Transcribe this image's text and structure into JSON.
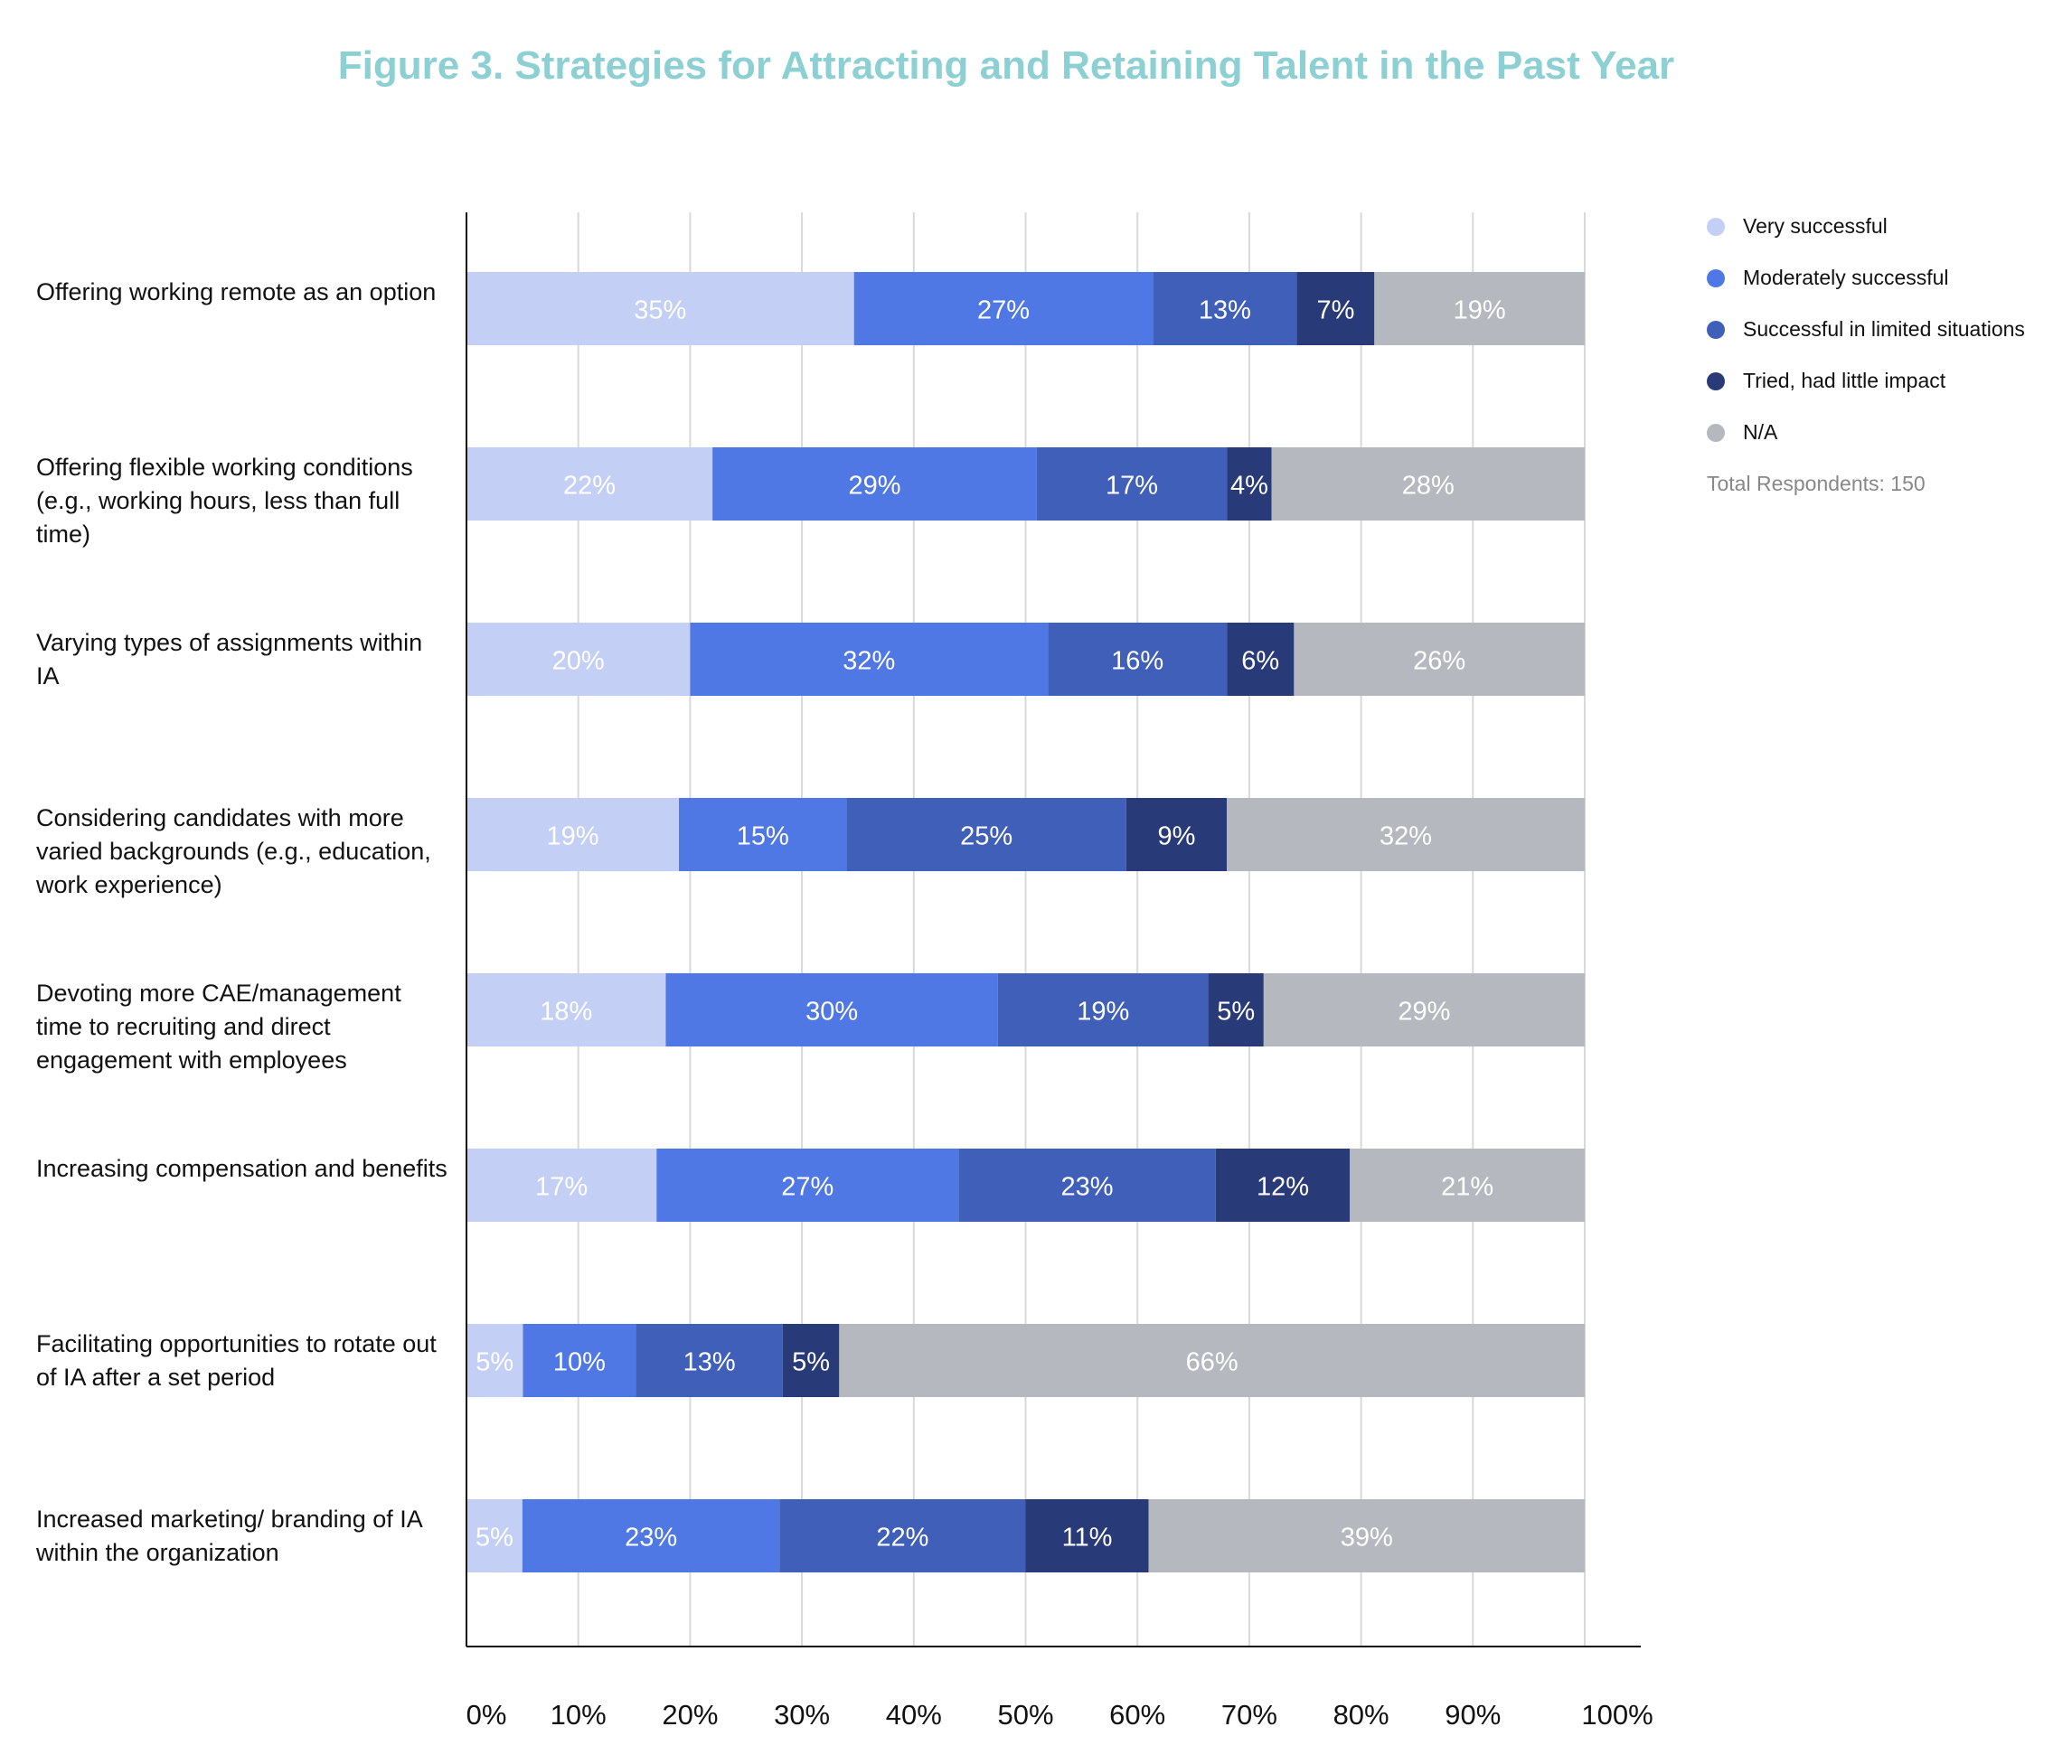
{
  "chart_data": {
    "type": "bar",
    "orientation": "horizontal",
    "stacked": true,
    "title": "Figure 3. Strategies for Attracting and Retaining Talent in the Past Year",
    "categories": [
      "Offering working remote as an option",
      "Offering flexible working conditions (e.g., working hours, less than full time)",
      "Varying types of assignments within IA",
      "Considering candidates with more varied backgrounds (e.g., education, work experience)",
      "Devoting more CAE/management time to recruiting and direct engagement with employees",
      "Increasing compensation and benefits",
      "Facilitating opportunities to rotate out of IA after a set period",
      "Increased marketing/ branding of IA within the organization"
    ],
    "series": [
      {
        "name": "Very successful",
        "color": "#c4cff6",
        "values": [
          35,
          22,
          20,
          19,
          18,
          17,
          5,
          5
        ]
      },
      {
        "name": "Moderately successful",
        "color": "#5078e4",
        "values": [
          27,
          29,
          32,
          15,
          30,
          27,
          10,
          23
        ]
      },
      {
        "name": "Successful in limited situations",
        "color": "#405fb8",
        "values": [
          13,
          17,
          16,
          25,
          19,
          23,
          13,
          22
        ]
      },
      {
        "name": "Tried, had little impact",
        "color": "#283a78",
        "values": [
          7,
          4,
          6,
          9,
          5,
          12,
          5,
          11
        ]
      },
      {
        "name": "N/A",
        "color": "#b5b9bf",
        "values": [
          19,
          28,
          26,
          32,
          29,
          21,
          66,
          39
        ]
      }
    ],
    "xlim": [
      0,
      100
    ],
    "xticks": [
      "0%",
      "10%",
      "20%",
      "30%",
      "40%",
      "50%",
      "60%",
      "70%",
      "80%",
      "90%",
      "100%"
    ],
    "grid": true,
    "legend_position": "right",
    "note": "Total Respondents: 150"
  }
}
